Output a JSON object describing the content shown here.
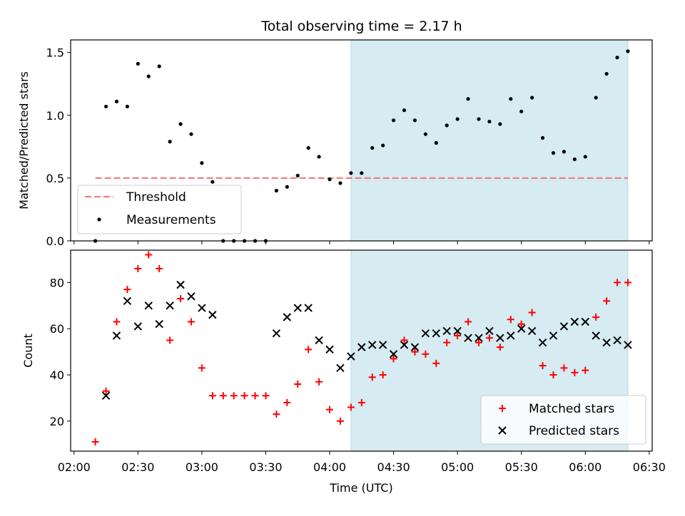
{
  "chart_data": [
    {
      "type": "scatter",
      "title": "Total observing time = 2.17 h",
      "ylabel": "Matched/Predicted stars",
      "xlabel": "",
      "ylim": [
        0,
        1.6
      ],
      "xlim": [
        "02:00",
        "06:30"
      ],
      "yticks": [
        "0.0",
        "0.5",
        "1.0",
        "1.5"
      ],
      "threshold": 0.5,
      "shaded_region": {
        "from": "04:10",
        "to": "06:20",
        "color": "#add8e6"
      },
      "legend_position": "lower-left",
      "series": [
        {
          "name": "Measurements",
          "color": "#000000",
          "x": [
            "02:10",
            "02:15",
            "02:20",
            "02:25",
            "02:30",
            "02:35",
            "02:40",
            "02:45",
            "02:50",
            "02:55",
            "03:00",
            "03:05",
            "03:10",
            "03:15",
            "03:20",
            "03:25",
            "03:30",
            "03:35",
            "03:40",
            "03:45",
            "03:50",
            "03:55",
            "04:00",
            "04:05",
            "04:10",
            "04:15",
            "04:20",
            "04:25",
            "04:30",
            "04:35",
            "04:40",
            "04:45",
            "04:50",
            "04:55",
            "05:00",
            "05:05",
            "05:10",
            "05:15",
            "05:20",
            "05:25",
            "05:30",
            "05:35",
            "05:40",
            "05:45",
            "05:50",
            "05:55",
            "06:00",
            "06:05",
            "06:10",
            "06:15",
            "06:20"
          ],
          "y": [
            0.0,
            1.07,
            1.11,
            1.07,
            1.41,
            1.31,
            1.39,
            0.79,
            0.93,
            0.85,
            0.62,
            0.47,
            0.0,
            0.0,
            0.0,
            0.0,
            0.0,
            0.4,
            0.43,
            0.52,
            0.74,
            0.67,
            0.49,
            0.46,
            0.54,
            0.54,
            0.74,
            0.76,
            0.96,
            1.04,
            0.96,
            0.85,
            0.78,
            0.92,
            0.97,
            1.13,
            0.97,
            0.95,
            0.93,
            1.13,
            1.03,
            1.14,
            0.82,
            0.7,
            0.71,
            0.65,
            0.67,
            1.14,
            1.33,
            1.46,
            1.51
          ]
        },
        {
          "name": "Threshold",
          "color": "#f08080",
          "x": [
            "02:10",
            "06:20"
          ],
          "y": [
            0.5,
            0.5
          ]
        }
      ]
    },
    {
      "type": "scatter",
      "title": "",
      "ylabel": "Count",
      "xlabel": "Time (UTC)",
      "ylim": [
        7,
        94
      ],
      "xlim": [
        "02:00",
        "06:30"
      ],
      "yticks": [
        "20",
        "40",
        "60",
        "80"
      ],
      "xticks": [
        "02:00",
        "02:30",
        "03:00",
        "03:30",
        "04:00",
        "04:30",
        "05:00",
        "05:30",
        "06:00",
        "06:30"
      ],
      "shaded_region": {
        "from": "04:10",
        "to": "06:20",
        "color": "#add8e6"
      },
      "legend_position": "lower-right",
      "series": [
        {
          "name": "Matched stars",
          "color": "#ff0000",
          "marker": "+",
          "x": [
            "02:10",
            "02:15",
            "02:20",
            "02:25",
            "02:30",
            "02:35",
            "02:40",
            "02:45",
            "02:50",
            "02:55",
            "03:00",
            "03:05",
            "03:10",
            "03:15",
            "03:20",
            "03:25",
            "03:30",
            "03:35",
            "03:40",
            "03:45",
            "03:50",
            "03:55",
            "04:00",
            "04:05",
            "04:10",
            "04:15",
            "04:20",
            "04:25",
            "04:30",
            "04:35",
            "04:40",
            "04:45",
            "04:50",
            "04:55",
            "05:00",
            "05:05",
            "05:10",
            "05:15",
            "05:20",
            "05:25",
            "05:30",
            "05:35",
            "05:40",
            "05:45",
            "05:50",
            "05:55",
            "06:00",
            "06:05",
            "06:10",
            "06:15",
            "06:20"
          ],
          "y": [
            11,
            33,
            63,
            77,
            86,
            92,
            86,
            55,
            73,
            63,
            43,
            31,
            31,
            31,
            31,
            31,
            31,
            23,
            28,
            36,
            51,
            37,
            25,
            20,
            26,
            28,
            39,
            40,
            47,
            55,
            50,
            49,
            45,
            54,
            57,
            63,
            54,
            56,
            52,
            64,
            62,
            67,
            44,
            40,
            43,
            41,
            42,
            65,
            72,
            80,
            80
          ]
        },
        {
          "name": "Predicted stars",
          "color": "#000000",
          "marker": "x",
          "x": [
            "02:15",
            "02:20",
            "02:25",
            "02:30",
            "02:35",
            "02:40",
            "02:45",
            "02:50",
            "02:55",
            "03:00",
            "03:05",
            "03:35",
            "03:40",
            "03:45",
            "03:50",
            "03:55",
            "04:00",
            "04:05",
            "04:10",
            "04:15",
            "04:20",
            "04:25",
            "04:30",
            "04:35",
            "04:40",
            "04:45",
            "04:50",
            "04:55",
            "05:00",
            "05:05",
            "05:10",
            "05:15",
            "05:20",
            "05:25",
            "05:30",
            "05:35",
            "05:40",
            "05:45",
            "05:50",
            "05:55",
            "06:00",
            "06:05",
            "06:10",
            "06:15",
            "06:20"
          ],
          "y": [
            31,
            57,
            72,
            61,
            70,
            62,
            70,
            79,
            74,
            69,
            66,
            58,
            65,
            69,
            69,
            55,
            51,
            43,
            48,
            52,
            53,
            53,
            49,
            53,
            52,
            58,
            58,
            59,
            59,
            56,
            56,
            59,
            56,
            57,
            60,
            59,
            54,
            57,
            61,
            63,
            63,
            57,
            54,
            55,
            53
          ]
        }
      ]
    }
  ]
}
